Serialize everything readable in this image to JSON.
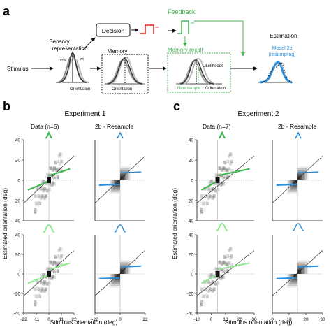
{
  "panels": {
    "a": "a",
    "b": "b",
    "c": "c"
  },
  "schematic": {
    "stimulus": "Stimulus",
    "sensory": [
      "Sensory",
      "representation"
    ],
    "ccw": "ccw",
    "cw": "cw",
    "orientation": "Orientation",
    "decision": "Decision",
    "feedback": "Feedback",
    "memory": "Memory",
    "memory_recall": "Memory recall",
    "likelihoods": "Likelihoods",
    "new_sample": "New sample",
    "estimation": "Estimation",
    "model": [
      "Model 2b",
      "(resampling)"
    ]
  },
  "experiments": [
    {
      "title": "Experiment 1",
      "data_label": "Data (n=5)",
      "model_label": "2b - Resample"
    },
    {
      "title": "Experiment 2",
      "data_label": "Data (n=7)",
      "model_label": "2b - Resample"
    }
  ],
  "axes": {
    "ylabel": "Estimated orientation (deg)",
    "xlabel": "Stimulus orientation (deg)",
    "y_ticks": [
      "40",
      "20",
      "0",
      "-20",
      "-40"
    ],
    "x_ticks_exp1": [
      "-22",
      "-11",
      "0",
      "11",
      "22"
    ],
    "x_ticks_exp1_model": [
      "-22",
      "0",
      "22"
    ],
    "x_ticks_exp2": [
      "-10",
      "0",
      "10",
      "20",
      "30"
    ],
    "x_ticks_exp2_model": [
      "0",
      "10",
      "20",
      "30"
    ]
  },
  "colors": {
    "feedback_green": "#3cb54a",
    "light_green": "#8de88d",
    "model_blue": "#2b8fdc",
    "decision_red": "#e0251b"
  }
}
